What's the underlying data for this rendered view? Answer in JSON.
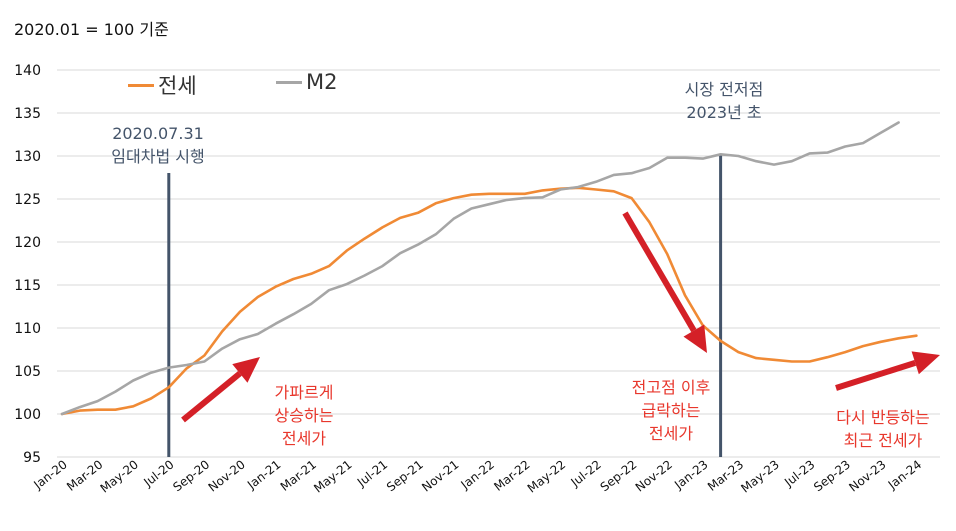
{
  "colors": {
    "jeonse": "#f08a35",
    "m2": "#a6a6a6",
    "event_line": "#44546a",
    "arrow": "#d42027",
    "annotation": "#e8372c",
    "grid": "#d9d9d9"
  },
  "chart_data": {
    "type": "line",
    "unit_note": "2020.01 = 100 기준",
    "ylim": [
      95,
      140
    ],
    "yticks": [
      95,
      100,
      105,
      110,
      115,
      120,
      125,
      130,
      135,
      140
    ],
    "grid": "horizontal",
    "legend_position": "top-left",
    "x": [
      "2020-01",
      "2020-02",
      "2020-03",
      "2020-04",
      "2020-05",
      "2020-06",
      "2020-07",
      "2020-08",
      "2020-09",
      "2020-10",
      "2020-11",
      "2020-12",
      "2021-01",
      "2021-02",
      "2021-03",
      "2021-04",
      "2021-05",
      "2021-06",
      "2021-07",
      "2021-08",
      "2021-09",
      "2021-10",
      "2021-11",
      "2021-12",
      "2022-01",
      "2022-02",
      "2022-03",
      "2022-04",
      "2022-05",
      "2022-06",
      "2022-07",
      "2022-08",
      "2022-09",
      "2022-10",
      "2022-11",
      "2022-12",
      "2023-01",
      "2023-02",
      "2023-03",
      "2023-04",
      "2023-05",
      "2023-06",
      "2023-07",
      "2023-08",
      "2023-09",
      "2023-10",
      "2023-11",
      "2023-12",
      "2024-01",
      "2024-02"
    ],
    "xtick_labels": [
      "Jan-20",
      "Mar-20",
      "May-20",
      "Jul-20",
      "Sep-20",
      "Nov-20",
      "Jan-21",
      "Mar-21",
      "May-21",
      "Jul-21",
      "Sep-21",
      "Nov-21",
      "Jan-22",
      "Mar-22",
      "May-22",
      "Jul-22",
      "Sep-22",
      "Nov-22",
      "Jan-23",
      "Mar-23",
      "May-23",
      "Jul-23",
      "Sep-23",
      "Nov-23",
      "Jan-24"
    ],
    "series": [
      {
        "name": "전세",
        "color": "#f08a35",
        "values": [
          100.0,
          100.4,
          100.5,
          100.5,
          100.9,
          101.8,
          103.1,
          105.3,
          106.8,
          109.6,
          111.9,
          113.6,
          114.8,
          115.7,
          116.3,
          117.2,
          119.0,
          120.4,
          121.7,
          122.8,
          123.4,
          124.5,
          125.1,
          125.5,
          125.6,
          125.6,
          125.6,
          126.0,
          126.2,
          126.3,
          126.1,
          125.9,
          125.1,
          122.3,
          118.6,
          113.8,
          110.3,
          108.5,
          107.2,
          106.5,
          106.3,
          106.1,
          106.1,
          106.6,
          107.2,
          107.9,
          108.4,
          108.8,
          109.1,
          null
        ]
      },
      {
        "name": "M2",
        "color": "#a6a6a6",
        "values": [
          100.0,
          100.8,
          101.5,
          102.6,
          103.9,
          104.8,
          105.4,
          105.7,
          106.1,
          107.6,
          108.7,
          109.3,
          110.5,
          111.6,
          112.8,
          114.4,
          115.1,
          116.1,
          117.2,
          118.7,
          119.7,
          120.9,
          122.7,
          123.9,
          124.4,
          124.9,
          125.1,
          125.2,
          126.1,
          126.4,
          127.0,
          127.8,
          128.0,
          128.6,
          129.8,
          129.8,
          129.7,
          130.2,
          130.0,
          129.4,
          129.0,
          129.4,
          130.3,
          130.4,
          131.1,
          131.5,
          132.7,
          133.9,
          null,
          null
        ]
      }
    ],
    "event_markers": [
      {
        "x": "2020-07",
        "lines": [
          "2020.07.31",
          "임대차법 시행"
        ]
      },
      {
        "x": "2023-02",
        "lines": [
          "시장 전저점",
          "2023년 초"
        ]
      }
    ],
    "annotations": [
      {
        "lines": [
          "가파르게",
          "상승하는",
          "전세가"
        ]
      },
      {
        "lines": [
          "전고점 이후",
          "급락하는",
          "전세가"
        ]
      },
      {
        "lines": [
          "다시 반등하는",
          "최근 전세가"
        ]
      }
    ]
  }
}
